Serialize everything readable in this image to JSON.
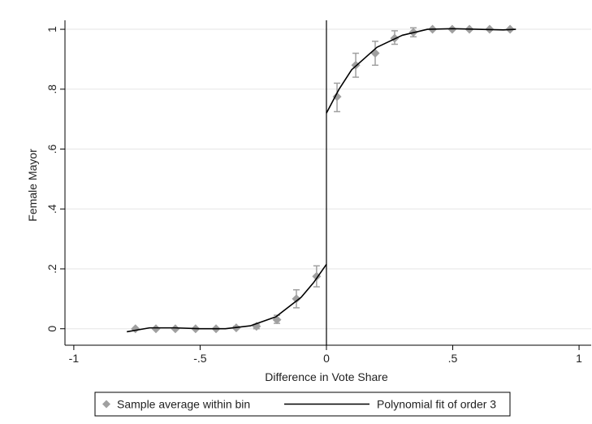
{
  "chart_data": {
    "type": "scatter",
    "x_label": "Difference in Vote Share",
    "y_label": "Female Mayor",
    "xlim": [
      -1.035,
      1.048
    ],
    "ylim": [
      -0.055,
      1.03
    ],
    "xticks": [
      -1,
      {
        "value": -0.5,
        "label": "-.5"
      },
      0,
      {
        "value": 0.5,
        "label": ".5"
      },
      1
    ],
    "yticks": [
      0,
      {
        "value": 0.2,
        "label": ".2"
      },
      {
        "value": 0.4,
        "label": ".4"
      },
      {
        "value": 0.6,
        "label": ".6"
      },
      {
        "value": 0.8,
        "label": ".8"
      },
      1
    ],
    "grid": true,
    "cutoff": 0,
    "legend": "bottom",
    "series": [
      {
        "name": "Sample average within bin",
        "type": "scatter",
        "color": "#a0a0a0",
        "x": [
          -0.756,
          -0.675,
          -0.598,
          -0.518,
          -0.437,
          -0.357,
          -0.277,
          -0.196,
          -0.119,
          -0.039,
          0.042,
          0.116,
          0.193,
          0.27,
          0.344,
          0.42,
          0.498,
          0.566,
          0.646,
          0.727
        ],
        "values": [
          0,
          0,
          0,
          0,
          0,
          0.003,
          0.008,
          0.03,
          0.1,
          0.175,
          0.775,
          0.88,
          0.92,
          0.97,
          0.99,
          1,
          1,
          1,
          1,
          1
        ],
        "ci_low": [
          null,
          null,
          null,
          null,
          null,
          0,
          0,
          0.018,
          0.07,
          0.14,
          0.725,
          0.84,
          0.88,
          0.95,
          0.975,
          null,
          null,
          null,
          null,
          null
        ],
        "ci_high": [
          null,
          null,
          null,
          null,
          null,
          0.008,
          0.015,
          0.045,
          0.13,
          0.21,
          0.82,
          0.92,
          0.96,
          0.995,
          1.005,
          null,
          null,
          null,
          null,
          null
        ]
      },
      {
        "name": "Polynomial fit of order 3",
        "type": "line",
        "color": "#000000",
        "x": [
          -0.79,
          -0.7,
          -0.6,
          -0.5,
          -0.4,
          -0.3,
          -0.2,
          -0.1,
          -0.05,
          0,
          0,
          0,
          0.05,
          0.1,
          0.2,
          0.3,
          0.4,
          0.5,
          0.6,
          0.7,
          0.75
        ],
        "values": [
          -0.01,
          0.003,
          0.003,
          0,
          0,
          0.01,
          0.04,
          0.105,
          0.155,
          0.215,
          null,
          0.72,
          0.8,
          0.865,
          0.94,
          0.98,
          1,
          1.002,
          1,
          0.998,
          1
        ]
      }
    ]
  }
}
